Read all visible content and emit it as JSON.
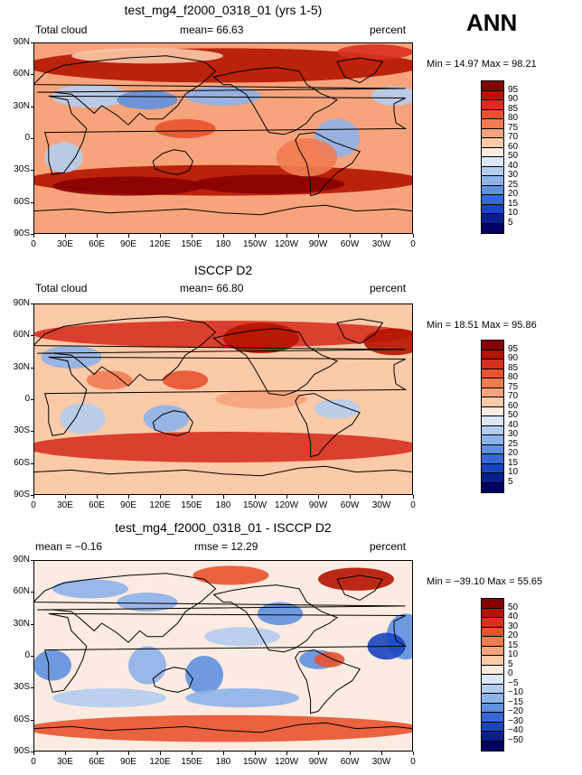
{
  "season": "ANN",
  "lat_labels": [
    "90N",
    "60N",
    "30N",
    "0",
    "30S",
    "60S",
    "90S"
  ],
  "lon_labels": [
    "0",
    "30E",
    "60E",
    "90E",
    "120E",
    "150E",
    "180",
    "150W",
    "120W",
    "90W",
    "60W",
    "30W",
    "0"
  ],
  "panels": [
    {
      "title": "test_mg4_f2000_0318_01 (yrs 1-5)",
      "left_label": "Total cloud",
      "stat_label": "mean=  66.63",
      "stat2_label": "",
      "units": "percent",
      "minmax": "Min =  14.97 Max =  98.21",
      "colorbar_labels": [
        "95",
        "90",
        "85",
        "80",
        "75",
        "70",
        "60",
        "50",
        "40",
        "30",
        "25",
        "20",
        "15",
        "10",
        "5"
      ],
      "colorbar_colors": [
        "#870000",
        "#b41400",
        "#d7301f",
        "#e8532f",
        "#f27b52",
        "#f7a47c",
        "#fbcaa8",
        "#fcebe0",
        "#dbe6f7",
        "#b3cdf0",
        "#8db3ea",
        "#5f91df",
        "#3568d6",
        "#1a45c0",
        "#0a1f8f",
        "#000064"
      ]
    },
    {
      "title": "ISCCP D2",
      "left_label": "Total cloud",
      "stat_label": "mean=  66.80",
      "stat2_label": "",
      "units": "percent",
      "minmax": "Min =  18.51 Max =  95.86",
      "colorbar_labels": [
        "95",
        "90",
        "85",
        "80",
        "75",
        "70",
        "60",
        "50",
        "40",
        "30",
        "25",
        "20",
        "15",
        "10",
        "5"
      ],
      "colorbar_colors": [
        "#870000",
        "#b41400",
        "#d7301f",
        "#e8532f",
        "#f27b52",
        "#f7a47c",
        "#fbcaa8",
        "#fcebe0",
        "#dbe6f7",
        "#b3cdf0",
        "#8db3ea",
        "#5f91df",
        "#3568d6",
        "#1a45c0",
        "#0a1f8f",
        "#000064"
      ]
    },
    {
      "title": "test_mg4_f2000_0318_01 - ISCCP D2",
      "left_label": "mean =  −0.16",
      "stat_label": "",
      "stat2_label": "rmse =  12.29",
      "units": "percent",
      "minmax": "Min = −39.10 Max =  55.65",
      "colorbar_labels": [
        "50",
        "40",
        "30",
        "20",
        "15",
        "10",
        "5",
        "0",
        "−5",
        "−10",
        "−15",
        "−20",
        "−30",
        "−40",
        "−50"
      ],
      "colorbar_colors": [
        "#870000",
        "#b41400",
        "#d7301f",
        "#e8532f",
        "#f27b52",
        "#f7a47c",
        "#fbcaa8",
        "#fcebe0",
        "#dbe6f7",
        "#b3cdf0",
        "#8db3ea",
        "#5f91df",
        "#3568d6",
        "#1a45c0",
        "#0a1f8f",
        "#000064"
      ]
    }
  ]
}
